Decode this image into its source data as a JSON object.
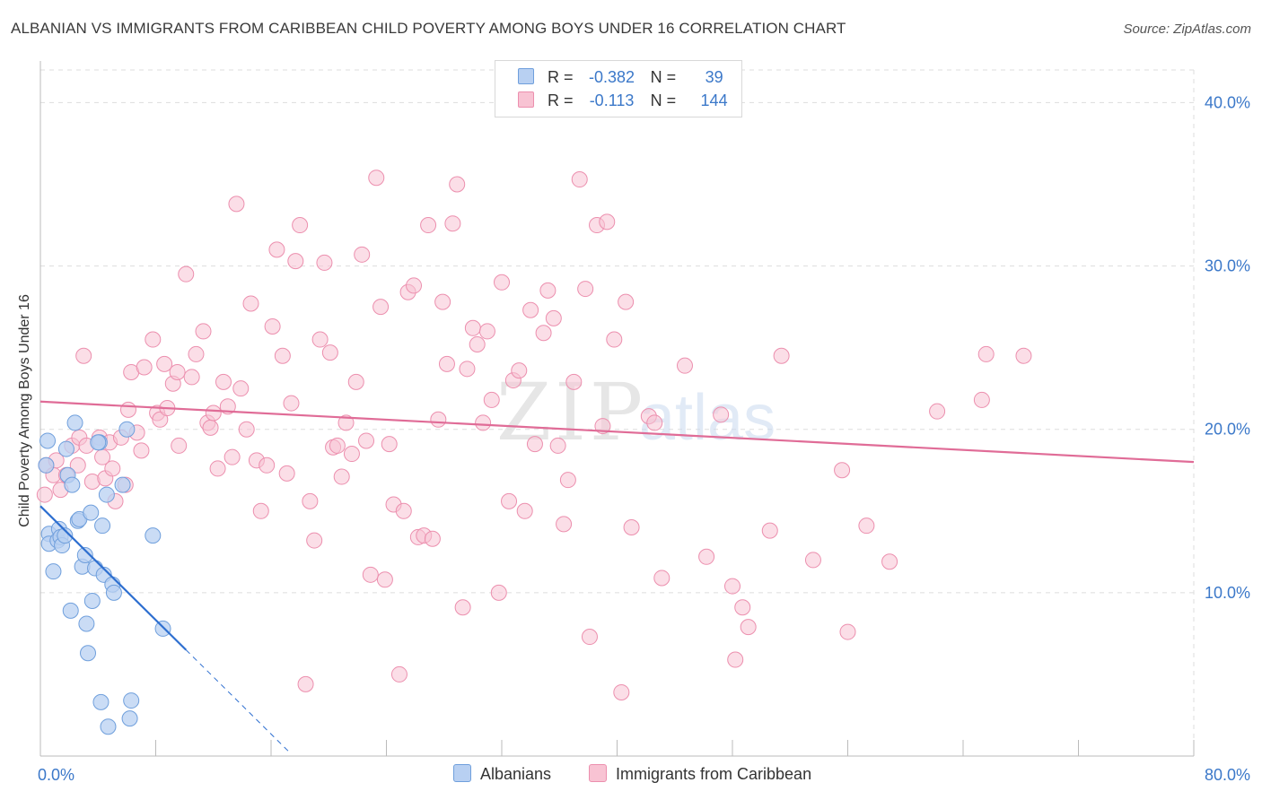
{
  "title": "ALBANIAN VS IMMIGRANTS FROM CARIBBEAN CHILD POVERTY AMONG BOYS UNDER 16 CORRELATION CHART",
  "source": "Source: ZipAtlas.com",
  "watermark": {
    "zip": "ZIP",
    "atlas": "atlas"
  },
  "colors": {
    "blue_fill": "#b8d0f2",
    "blue_stroke": "#6f9fdc",
    "blue_line": "#2e6fd0",
    "pink_fill": "#f8c3d3",
    "pink_stroke": "#ec8fae",
    "pink_line": "#e06c97",
    "tick_label": "#3b78c9",
    "grid": "#dddddd"
  },
  "legend": {
    "rows": [
      {
        "r_label": "R =",
        "r_value": "-0.382",
        "n_label": "N =",
        "n_value": "39"
      },
      {
        "r_label": "R =",
        "r_value": "-0.113",
        "n_label": "N =",
        "n_value": "144"
      }
    ]
  },
  "bottom_legend": {
    "albanians": "Albanians",
    "caribbean": "Immigrants from Caribbean"
  },
  "chart_data": {
    "type": "scatter",
    "title": "ALBANIAN VS IMMIGRANTS FROM CARIBBEAN CHILD POVERTY AMONG BOYS UNDER 16 CORRELATION CHART",
    "xlabel": "",
    "ylabel": "Child Poverty Among Boys Under 16",
    "xlim": [
      0,
      80
    ],
    "ylim": [
      0,
      42
    ],
    "x_tick_labels": [
      {
        "value": 0,
        "label": "0.0%"
      },
      {
        "value": 80,
        "label": "80.0%"
      }
    ],
    "y_tick_labels": [
      {
        "value": 10,
        "label": "10.0%"
      },
      {
        "value": 20,
        "label": "20.0%"
      },
      {
        "value": 30,
        "label": "30.0%"
      },
      {
        "value": 40,
        "label": "40.0%"
      }
    ],
    "x_minor_ticks": [
      8,
      16,
      24,
      32,
      40,
      48,
      56,
      64,
      72,
      80
    ],
    "series": [
      {
        "name": "Albanians",
        "color": "blue",
        "R": -0.382,
        "N": 39,
        "trend": {
          "x": [
            0,
            10.1
          ],
          "y": [
            15.3,
            6.5
          ]
        },
        "trend_dashed": {
          "x": [
            10.1,
            17.2
          ],
          "y": [
            6.5,
            0.3
          ]
        },
        "points": [
          [
            0.5,
            19.3
          ],
          [
            0.4,
            17.8
          ],
          [
            0.6,
            13.6
          ],
          [
            0.6,
            13.0
          ],
          [
            0.9,
            11.3
          ],
          [
            1.2,
            13.2
          ],
          [
            1.3,
            13.9
          ],
          [
            1.4,
            13.4
          ],
          [
            1.5,
            12.9
          ],
          [
            1.7,
            13.5
          ],
          [
            1.8,
            18.8
          ],
          [
            1.9,
            17.2
          ],
          [
            2.1,
            8.9
          ],
          [
            2.2,
            16.6
          ],
          [
            2.4,
            20.4
          ],
          [
            2.6,
            14.4
          ],
          [
            2.7,
            14.5
          ],
          [
            2.9,
            11.6
          ],
          [
            3.1,
            12.3
          ],
          [
            3.2,
            8.1
          ],
          [
            3.3,
            6.3
          ],
          [
            3.5,
            14.9
          ],
          [
            3.6,
            9.5
          ],
          [
            3.8,
            11.5
          ],
          [
            4.1,
            19.2
          ],
          [
            4.2,
            3.3
          ],
          [
            4.3,
            14.1
          ],
          [
            4.4,
            11.1
          ],
          [
            4.6,
            16.0
          ],
          [
            4.7,
            1.8
          ],
          [
            5.0,
            10.5
          ],
          [
            5.1,
            10.0
          ],
          [
            5.7,
            16.6
          ],
          [
            6.0,
            20.0
          ],
          [
            6.2,
            2.3
          ],
          [
            6.3,
            3.4
          ],
          [
            7.8,
            13.5
          ],
          [
            8.5,
            7.8
          ],
          [
            4.0,
            19.2
          ]
        ]
      },
      {
        "name": "Immigrants from Caribbean",
        "color": "pink",
        "R": -0.113,
        "N": 144,
        "trend": {
          "x": [
            0,
            80
          ],
          "y": [
            21.7,
            18.0
          ]
        },
        "points": [
          [
            0.3,
            16.0
          ],
          [
            0.4,
            17.8
          ],
          [
            0.9,
            17.2
          ],
          [
            1.1,
            18.1
          ],
          [
            1.4,
            16.3
          ],
          [
            1.8,
            17.2
          ],
          [
            2.2,
            19.0
          ],
          [
            2.6,
            17.8
          ],
          [
            2.7,
            19.5
          ],
          [
            3.0,
            24.5
          ],
          [
            3.2,
            19.0
          ],
          [
            3.6,
            16.8
          ],
          [
            4.1,
            19.5
          ],
          [
            4.3,
            18.3
          ],
          [
            4.5,
            17.0
          ],
          [
            4.8,
            19.2
          ],
          [
            5.0,
            17.6
          ],
          [
            5.2,
            15.6
          ],
          [
            5.6,
            19.5
          ],
          [
            5.9,
            16.6
          ],
          [
            6.1,
            21.2
          ],
          [
            6.3,
            23.5
          ],
          [
            6.7,
            19.8
          ],
          [
            7.0,
            18.7
          ],
          [
            7.2,
            23.8
          ],
          [
            7.8,
            25.5
          ],
          [
            8.1,
            21.0
          ],
          [
            8.3,
            20.6
          ],
          [
            8.6,
            24.0
          ],
          [
            8.8,
            21.3
          ],
          [
            9.2,
            22.8
          ],
          [
            9.5,
            23.5
          ],
          [
            9.6,
            19.0
          ],
          [
            10.1,
            29.5
          ],
          [
            10.5,
            23.2
          ],
          [
            10.8,
            24.6
          ],
          [
            11.3,
            26.0
          ],
          [
            11.6,
            20.4
          ],
          [
            11.8,
            20.1
          ],
          [
            12.0,
            21.0
          ],
          [
            12.3,
            17.6
          ],
          [
            12.7,
            22.9
          ],
          [
            13.0,
            21.4
          ],
          [
            13.3,
            18.3
          ],
          [
            13.6,
            33.8
          ],
          [
            13.9,
            22.5
          ],
          [
            14.3,
            20.0
          ],
          [
            14.6,
            27.7
          ],
          [
            15.0,
            18.1
          ],
          [
            15.3,
            15.0
          ],
          [
            15.7,
            17.8
          ],
          [
            16.1,
            26.3
          ],
          [
            16.4,
            31.0
          ],
          [
            16.8,
            24.5
          ],
          [
            17.1,
            17.3
          ],
          [
            17.4,
            21.6
          ],
          [
            17.7,
            30.3
          ],
          [
            18.0,
            32.5
          ],
          [
            18.4,
            4.4
          ],
          [
            18.7,
            15.6
          ],
          [
            19.0,
            13.2
          ],
          [
            19.4,
            25.5
          ],
          [
            19.7,
            30.2
          ],
          [
            20.1,
            24.7
          ],
          [
            20.3,
            18.9
          ],
          [
            20.6,
            19.0
          ],
          [
            20.9,
            17.1
          ],
          [
            21.2,
            20.4
          ],
          [
            21.6,
            18.5
          ],
          [
            21.9,
            22.9
          ],
          [
            22.3,
            30.7
          ],
          [
            22.6,
            19.3
          ],
          [
            22.9,
            11.1
          ],
          [
            23.3,
            35.4
          ],
          [
            23.6,
            27.5
          ],
          [
            23.9,
            10.8
          ],
          [
            24.2,
            19.1
          ],
          [
            24.5,
            15.4
          ],
          [
            24.9,
            5.0
          ],
          [
            25.2,
            15.0
          ],
          [
            25.5,
            28.4
          ],
          [
            25.9,
            28.8
          ],
          [
            26.2,
            13.4
          ],
          [
            26.6,
            13.5
          ],
          [
            26.9,
            32.5
          ],
          [
            27.2,
            13.3
          ],
          [
            27.6,
            20.6
          ],
          [
            27.9,
            27.8
          ],
          [
            28.2,
            24.0
          ],
          [
            28.6,
            32.6
          ],
          [
            28.9,
            35.0
          ],
          [
            29.3,
            9.1
          ],
          [
            29.6,
            23.7
          ],
          [
            30.0,
            26.2
          ],
          [
            30.3,
            25.2
          ],
          [
            30.7,
            20.4
          ],
          [
            31.0,
            26.0
          ],
          [
            31.3,
            21.8
          ],
          [
            31.8,
            10.0
          ],
          [
            32.0,
            29.0
          ],
          [
            32.5,
            15.6
          ],
          [
            32.8,
            23.0
          ],
          [
            33.2,
            23.6
          ],
          [
            33.6,
            15.0
          ],
          [
            34.0,
            27.3
          ],
          [
            34.3,
            19.1
          ],
          [
            34.9,
            25.9
          ],
          [
            35.2,
            28.5
          ],
          [
            35.6,
            26.8
          ],
          [
            35.9,
            19.0
          ],
          [
            36.3,
            14.2
          ],
          [
            36.6,
            16.9
          ],
          [
            37.0,
            22.9
          ],
          [
            37.4,
            35.3
          ],
          [
            37.8,
            28.6
          ],
          [
            38.1,
            7.3
          ],
          [
            38.6,
            32.5
          ],
          [
            39.0,
            20.2
          ],
          [
            39.3,
            32.7
          ],
          [
            39.8,
            25.5
          ],
          [
            40.3,
            3.9
          ],
          [
            40.6,
            27.8
          ],
          [
            41.0,
            14.0
          ],
          [
            42.2,
            20.8
          ],
          [
            42.6,
            20.4
          ],
          [
            43.1,
            10.9
          ],
          [
            44.7,
            23.9
          ],
          [
            46.2,
            12.2
          ],
          [
            47.2,
            20.9
          ],
          [
            48.0,
            10.4
          ],
          [
            48.7,
            9.1
          ],
          [
            49.1,
            7.9
          ],
          [
            48.2,
            5.9
          ],
          [
            50.6,
            13.8
          ],
          [
            51.4,
            24.5
          ],
          [
            53.6,
            12.0
          ],
          [
            55.6,
            17.5
          ],
          [
            56.0,
            7.6
          ],
          [
            57.3,
            14.1
          ],
          [
            58.9,
            11.9
          ],
          [
            62.2,
            21.1
          ],
          [
            65.3,
            21.8
          ],
          [
            65.6,
            24.6
          ],
          [
            68.2,
            24.5
          ]
        ]
      }
    ]
  }
}
